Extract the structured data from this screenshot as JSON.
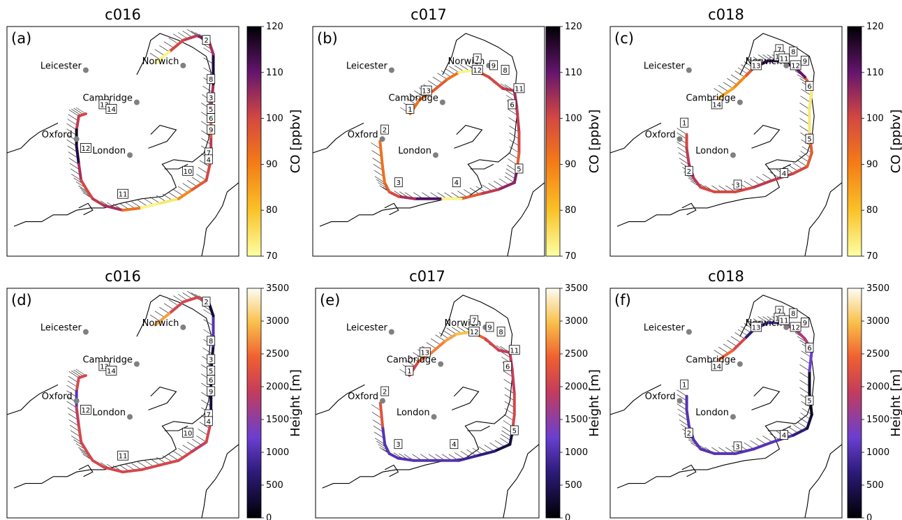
{
  "figure": {
    "cities": [
      "Leicester",
      "Norwich",
      "Cambridge",
      "Oxford",
      "London"
    ],
    "panels": [
      {
        "id": "a",
        "label": "(a)",
        "title": "c016",
        "flight": "c016",
        "var": "co"
      },
      {
        "id": "b",
        "label": "(b)",
        "title": "c017",
        "flight": "c017",
        "var": "co"
      },
      {
        "id": "c",
        "label": "(c)",
        "title": "c018",
        "flight": "c018",
        "var": "co"
      },
      {
        "id": "d",
        "label": "(d)",
        "title": "c016",
        "flight": "c016",
        "var": "height"
      },
      {
        "id": "e",
        "label": "(e)",
        "title": "c017",
        "flight": "c017",
        "var": "height"
      },
      {
        "id": "f",
        "label": "(f)",
        "title": "c018",
        "flight": "c018",
        "var": "height"
      }
    ],
    "colorbars": {
      "co": {
        "label": "CO [ppbv]",
        "range": [
          70,
          120
        ],
        "ticks": [
          70,
          80,
          90,
          100,
          110,
          120
        ],
        "colormap": "inferno_r"
      },
      "height": {
        "label": "Height [m]",
        "range": [
          0,
          3500
        ],
        "ticks": [
          0,
          500,
          1000,
          1500,
          2000,
          2500,
          3000,
          3500
        ],
        "colormap": "inferno"
      }
    },
    "flight_leg_labels": {
      "c016": [
        "2",
        "8",
        "3",
        "5",
        "6",
        "9",
        "7",
        "4",
        "10",
        "11",
        "12",
        "13",
        "14"
      ],
      "c017": [
        "7",
        "9",
        "8",
        "12",
        "13",
        "1",
        "11",
        "6",
        "2",
        "3",
        "4",
        "5"
      ],
      "c018": [
        "7",
        "8",
        "10",
        "11",
        "12",
        "9",
        "13",
        "6",
        "14",
        "1",
        "5",
        "2",
        "3",
        "4"
      ]
    }
  }
}
